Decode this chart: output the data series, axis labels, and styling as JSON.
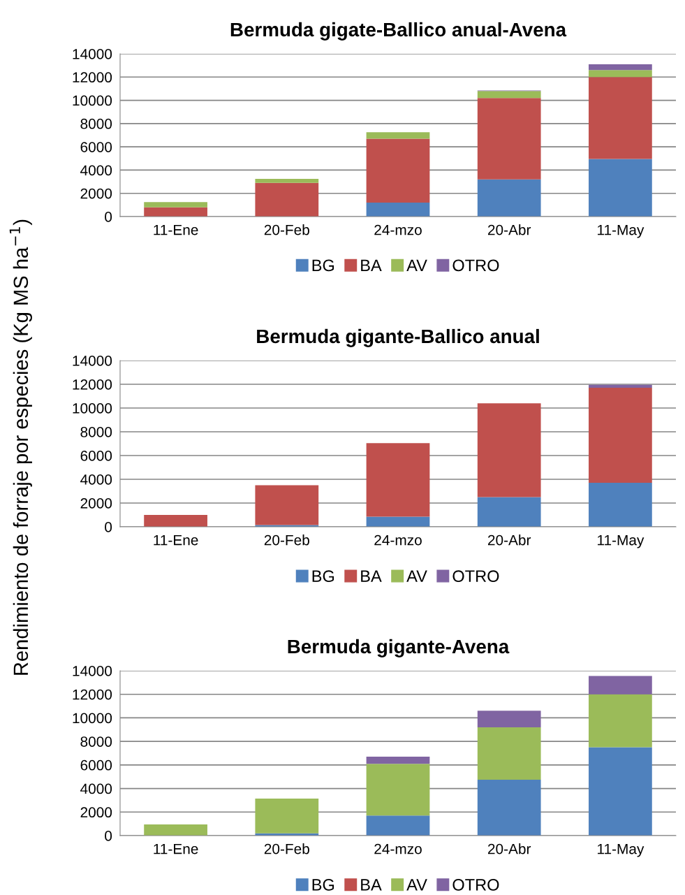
{
  "chart_data": [
    {
      "type": "bar",
      "stacked": true,
      "title": "Bermuda gigate-Ballico anual-Avena",
      "ylabel": "Rendimiento de forraje por especies (Kg MS ha$^{−1}$)",
      "categories": [
        "11-Ene",
        "20-Feb",
        "24-mzo",
        "20-Abr",
        "11-May"
      ],
      "ylim": [
        0,
        14000
      ],
      "yticks": [
        0,
        2000,
        4000,
        6000,
        8000,
        10000,
        12000,
        14000
      ],
      "grid": "y",
      "legend": "bottom",
      "series": [
        {
          "name": "BG",
          "color": "#4f81bd",
          "values": [
            0,
            0,
            1200,
            3200,
            4950
          ]
        },
        {
          "name": "BA",
          "color": "#c0504d",
          "values": [
            800,
            2900,
            5500,
            7000,
            7050
          ]
        },
        {
          "name": "AV",
          "color": "#9bbb59",
          "values": [
            450,
            350,
            550,
            600,
            600
          ]
        },
        {
          "name": "OTRO",
          "color": "#8064a2",
          "values": [
            0,
            0,
            0,
            50,
            500
          ]
        }
      ]
    },
    {
      "type": "bar",
      "stacked": true,
      "title": "Bermuda gigante-Ballico anual",
      "categories": [
        "11-Ene",
        "20-Feb",
        "24-mzo",
        "20-Abr",
        "11-May"
      ],
      "ylim": [
        0,
        14000
      ],
      "yticks": [
        0,
        2000,
        4000,
        6000,
        8000,
        10000,
        12000,
        14000
      ],
      "grid": "y",
      "legend": "bottom",
      "series": [
        {
          "name": "BG",
          "color": "#4f81bd",
          "values": [
            0,
            150,
            850,
            2500,
            3700
          ]
        },
        {
          "name": "BA",
          "color": "#c0504d",
          "values": [
            1000,
            3350,
            6200,
            7900,
            8000
          ]
        },
        {
          "name": "AV",
          "color": "#9bbb59",
          "values": [
            0,
            0,
            0,
            0,
            0
          ]
        },
        {
          "name": "OTRO",
          "color": "#8064a2",
          "values": [
            0,
            0,
            0,
            0,
            250
          ]
        }
      ]
    },
    {
      "type": "bar",
      "stacked": true,
      "title": "Bermuda gigante-Avena",
      "categories": [
        "11-Ene",
        "20-Feb",
        "24-mzo",
        "20-Abr",
        "11-May"
      ],
      "ylim": [
        0,
        14000
      ],
      "yticks": [
        0,
        2000,
        4000,
        6000,
        8000,
        10000,
        12000,
        14000
      ],
      "grid": "y",
      "legend": "bottom",
      "series": [
        {
          "name": "BG",
          "color": "#4f81bd",
          "values": [
            0,
            200,
            1700,
            4750,
            7500
          ]
        },
        {
          "name": "BA",
          "color": "#c0504d",
          "values": [
            0,
            0,
            0,
            0,
            0
          ]
        },
        {
          "name": "AV",
          "color": "#9bbb59",
          "values": [
            950,
            2950,
            4400,
            4450,
            4500
          ]
        },
        {
          "name": "OTRO",
          "color": "#8064a2",
          "values": [
            0,
            0,
            600,
            1400,
            1550
          ]
        }
      ]
    }
  ]
}
